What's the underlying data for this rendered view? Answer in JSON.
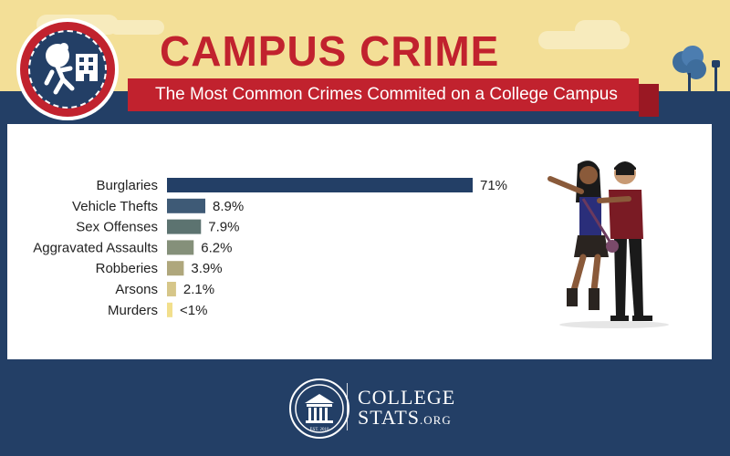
{
  "header": {
    "title": "CAMPUS CRIME",
    "subtitle": "The Most Common Crimes Commited on a College Campus"
  },
  "footer": {
    "brand_line1": "COLLEGE",
    "brand_line2_main": "STATS",
    "brand_line2_suffix": ".ORG",
    "seal_text": "EST. 2010"
  },
  "colors": {
    "sky": "#f3df97",
    "navy": "#233f66",
    "red": "#c1222e"
  },
  "icons": [
    "burglar-icon",
    "building-icon",
    "tree-icon",
    "lamppost-icon",
    "college-seal-icon"
  ],
  "chart_data": {
    "type": "bar",
    "orientation": "horizontal",
    "categories": [
      "Burglaries",
      "Vehicle Thefts",
      "Sex Offenses",
      "Aggravated Assaults",
      "Robberies",
      "Arsons",
      "Murders"
    ],
    "values": [
      71,
      8.9,
      7.9,
      6.2,
      3.9,
      2.1,
      1
    ],
    "value_labels": [
      "71%",
      "8.9%",
      "7.9%",
      "6.2%",
      "3.9%",
      "2.1%",
      "<1%"
    ],
    "colors": [
      "#233f66",
      "#3e5a76",
      "#5c7370",
      "#85907a",
      "#afa77c",
      "#d6c689",
      "#f2df8c"
    ],
    "unit": "%"
  }
}
